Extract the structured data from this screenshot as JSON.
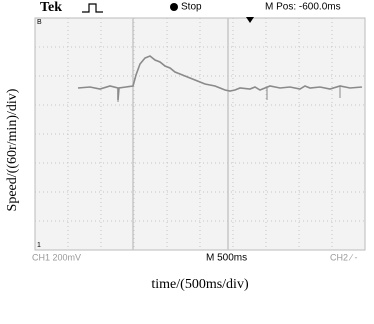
{
  "screen": {
    "brand": "Tek",
    "status": "Stop",
    "position": "M Pos: -600.0ms",
    "channel1": "CH1 200mV",
    "timebase": "M 500ms",
    "channel2": "CH2 ∕ -",
    "marker_top": "B",
    "marker_bottom": "1"
  },
  "axes": {
    "y_label": "Speed/((60r/min)/div)",
    "x_label": "time/(500ms/div)"
  }
}
